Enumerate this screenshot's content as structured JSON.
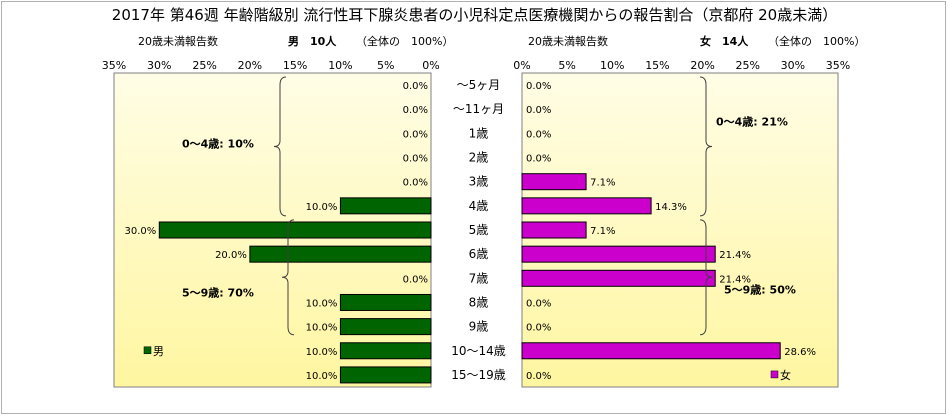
{
  "title": "2017年 第46週 年齢階級別 流行性耳下腺炎患者の小児科定点医療機関からの報告割合（京都府 20歳未満）",
  "header": {
    "left_caption": "20歳未満報告数",
    "male_summary": "男　10人",
    "male_total": "（全体の　100%）",
    "right_caption": "20歳未満報告数",
    "female_summary": "女　14人",
    "female_total": "（全体の　100%）"
  },
  "legend": {
    "male": "男",
    "female": "女"
  },
  "colors": {
    "male_bar": "#006400",
    "female_bar": "#cc00cc",
    "plot_bg_top": "#fffde6",
    "plot_bg_bottom": "#fff6a0"
  },
  "chart_data": {
    "type": "bar",
    "orientation": "horizontal",
    "categories": [
      "〜5ヶ月",
      "〜11ヶ月",
      "1歳",
      "2歳",
      "3歳",
      "4歳",
      "5歳",
      "6歳",
      "7歳",
      "8歳",
      "9歳",
      "10〜14歳",
      "15〜19歳"
    ],
    "xlim": [
      0,
      35
    ],
    "ticks": [
      "0%",
      "5%",
      "10%",
      "15%",
      "20%",
      "25%",
      "30%",
      "35%"
    ],
    "series": [
      {
        "name": "男",
        "values": [
          0.0,
          0.0,
          0.0,
          0.0,
          0.0,
          10.0,
          30.0,
          20.0,
          0.0,
          10.0,
          10.0,
          10.0,
          10.0
        ],
        "labels": [
          "0.0%",
          "0.0%",
          "0.0%",
          "0.0%",
          "0.0%",
          "10.0%",
          "30.0%",
          "20.0%",
          "0.0%",
          "10.0%",
          "10.0%",
          "10.0%",
          "10.0%"
        ]
      },
      {
        "name": "女",
        "values": [
          0.0,
          0.0,
          0.0,
          0.0,
          7.1,
          14.3,
          7.1,
          21.4,
          21.4,
          0.0,
          0.0,
          28.6,
          0.0
        ],
        "labels": [
          "0.0%",
          "0.0%",
          "0.0%",
          "0.0%",
          "7.1%",
          "14.3%",
          "7.1%",
          "21.4%",
          "21.4%",
          "0.0%",
          "0.0%",
          "28.6%",
          "0.0%"
        ]
      }
    ],
    "annotations": {
      "male_group_0_4": "0〜4歳: 10%",
      "male_group_5_9": "5〜9歳: 70%",
      "female_group_0_4": "0〜4歳: 21%",
      "female_group_5_9": "5〜9歳: 50%"
    }
  }
}
